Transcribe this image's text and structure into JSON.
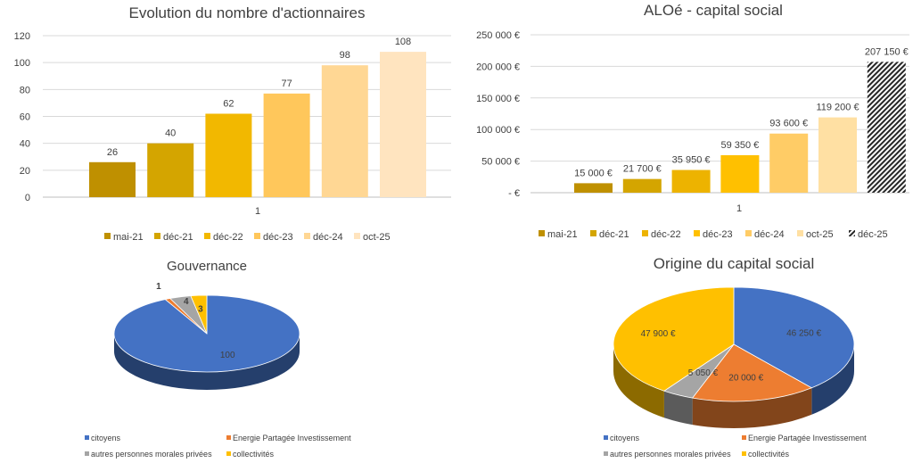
{
  "chart_data": [
    {
      "type": "bar",
      "title": "Evolution du nombre d'actionnaires",
      "categories": [
        "1"
      ],
      "series": [
        {
          "name": "mai-21",
          "values": [
            26
          ],
          "color": "#BF9000"
        },
        {
          "name": "déc-21",
          "values": [
            40
          ],
          "color": "#D4A500"
        },
        {
          "name": "déc-22",
          "values": [
            62
          ],
          "color": "#F2B800"
        },
        {
          "name": "déc-23",
          "values": [
            77
          ],
          "color": "#FFC75B"
        },
        {
          "name": "déc-24",
          "values": [
            98
          ],
          "color": "#FFD794"
        },
        {
          "name": "oct-25",
          "values": [
            108
          ],
          "color": "#FFE4BF"
        }
      ],
      "ylim": [
        0,
        120
      ],
      "yticks": [
        "0",
        "20",
        "40",
        "60",
        "80",
        "100",
        "120"
      ],
      "grid": true,
      "legend": "bottom"
    },
    {
      "type": "bar",
      "title": "ALOé - capital social",
      "categories": [
        "1"
      ],
      "series": [
        {
          "name": "mai-21",
          "values": [
            15000
          ],
          "label": "15 000 €",
          "color": "#BF9000"
        },
        {
          "name": "déc-21",
          "values": [
            21700
          ],
          "label": "21 700 €",
          "color": "#D4A500"
        },
        {
          "name": "déc-22",
          "values": [
            35950
          ],
          "label": "35 950 €",
          "color": "#EDB300"
        },
        {
          "name": "déc-23",
          "values": [
            59350
          ],
          "label": "59 350 €",
          "color": "#FFC000"
        },
        {
          "name": "déc-24",
          "values": [
            93600
          ],
          "label": "93 600 €",
          "color": "#FFCC66"
        },
        {
          "name": "oct-25",
          "values": [
            119200
          ],
          "label": "119 200 €",
          "color": "#FFE0A3"
        },
        {
          "name": "déc-25",
          "values": [
            207150
          ],
          "label": "207 150 €",
          "color": "#262626",
          "pattern": "hatched"
        }
      ],
      "ylim": [
        0,
        250000
      ],
      "yticks": [
        "-   €",
        "50 000 €",
        "100 000 €",
        "150 000 €",
        "200 000 €",
        "250 000 €"
      ],
      "grid": true,
      "legend": "bottom"
    },
    {
      "type": "pie",
      "title": "Gouvernance",
      "style": "3d",
      "slices": [
        {
          "name": "citoyens",
          "value": 100,
          "label": "100",
          "color": "#4472C4"
        },
        {
          "name": "Energie Partagée Investissement",
          "value": 1,
          "label": "1",
          "color": "#ED7D31"
        },
        {
          "name": "autres personnes morales privées",
          "value": 4,
          "label": "4",
          "color": "#A5A5A5"
        },
        {
          "name": "collectivités",
          "value": 3,
          "label": "3",
          "color": "#FFC000"
        }
      ],
      "legend": "bottom"
    },
    {
      "type": "pie",
      "title": "Origine du capital social",
      "style": "3d",
      "slices": [
        {
          "name": "citoyens",
          "value": 46250,
          "label": "46 250 €",
          "color": "#4472C4"
        },
        {
          "name": "Energie Partagée Investissement",
          "value": 20000,
          "label": "20 000 €",
          "color": "#ED7D31"
        },
        {
          "name": "autres personnes morales privées",
          "value": 5050,
          "label": "5 050 €",
          "color": "#A5A5A5"
        },
        {
          "name": "collectivités",
          "value": 47900,
          "label": "47 900 €",
          "color": "#FFC000"
        }
      ],
      "legend": "bottom"
    }
  ]
}
